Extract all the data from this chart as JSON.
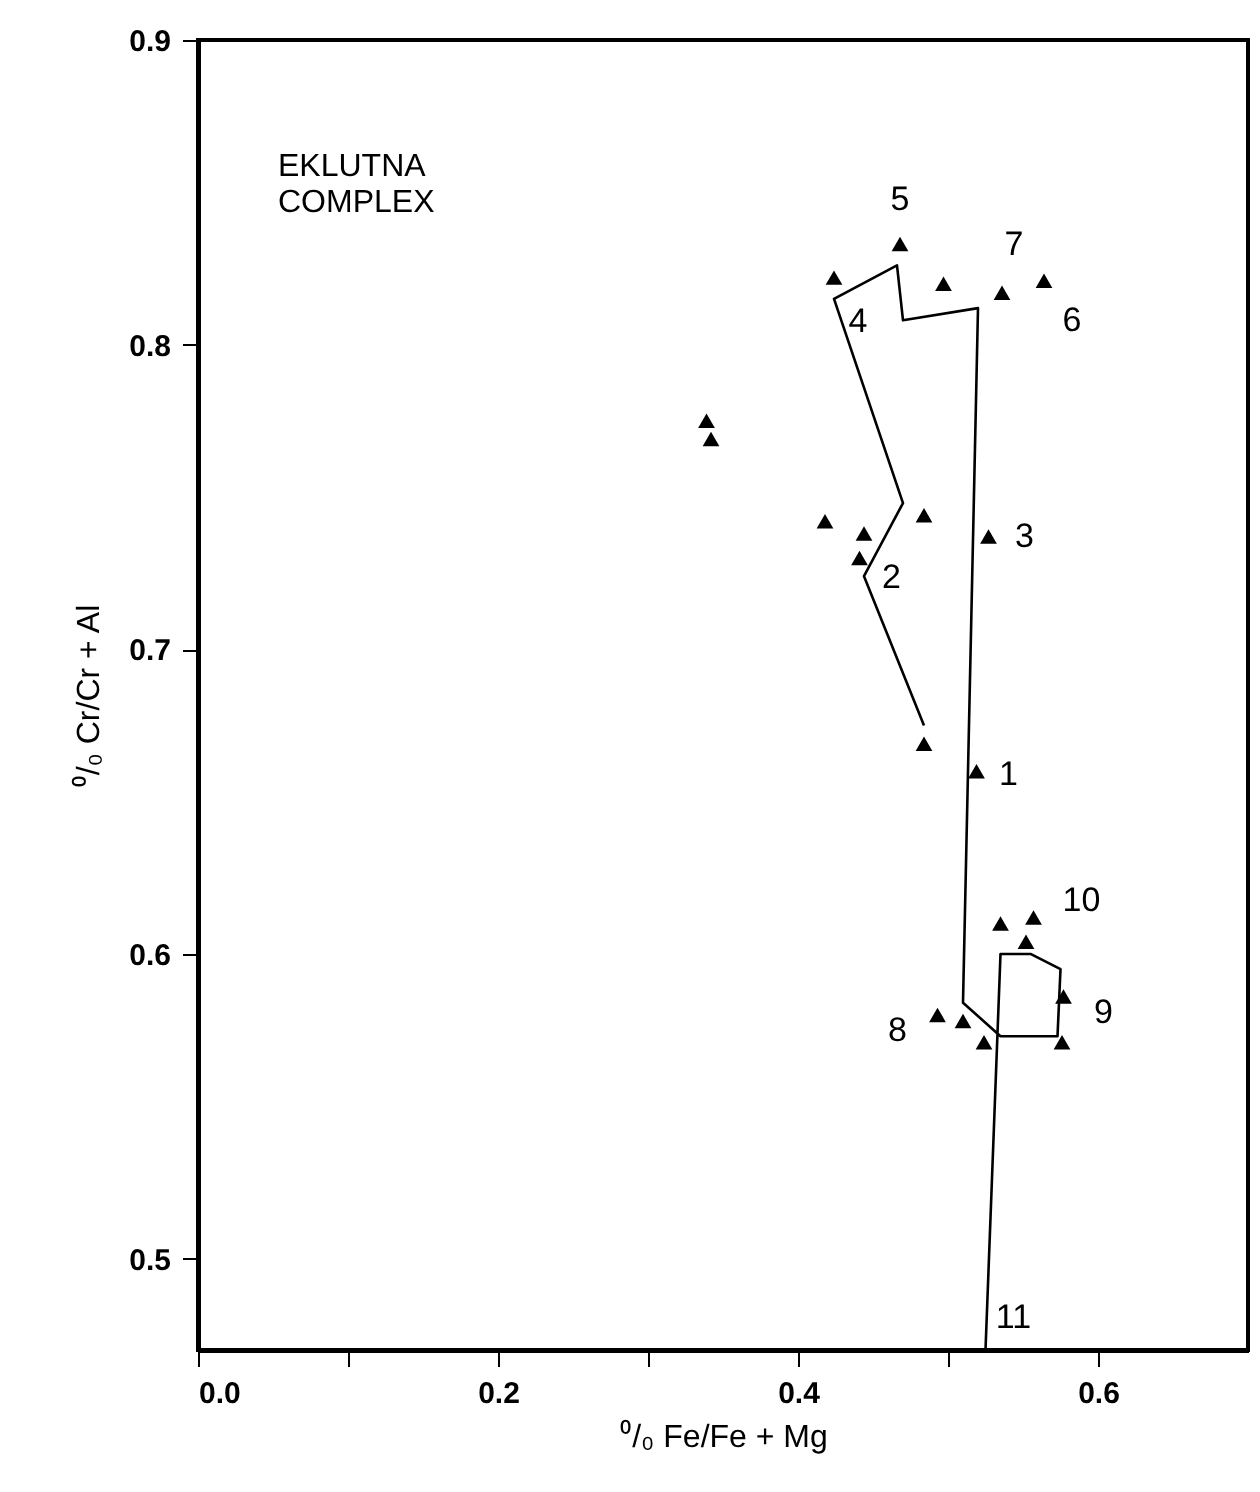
{
  "chart_data": {
    "type": "scatter",
    "xlabel": "⁰/₀ Fe/Fe + Mg",
    "ylabel": "⁰/₀ Cr/Cr + Al",
    "xlim": [
      0,
      0.7
    ],
    "ylim": [
      0.47,
      0.9
    ],
    "xticks": [
      {
        "value": 0,
        "label": "0.0"
      },
      {
        "value": 0.1,
        "label": null
      },
      0.2,
      {
        "value": 0.3,
        "label": null
      },
      0.4,
      {
        "value": 0.5,
        "label": null
      },
      0.6
    ],
    "yticks": [
      0.5,
      0.6,
      0.7,
      0.8,
      0.9
    ],
    "grid": false,
    "series": [
      {
        "type": "line",
        "color": "#000000",
        "marker": "none",
        "line_style": "solid",
        "x": [
          0.484,
          0.444,
          0.47,
          0.424,
          0.466,
          0.47,
          0.52,
          0.51,
          0.535,
          0.573,
          0.575,
          0.555,
          0.535,
          0.525
        ],
        "values": [
          0.675,
          0.724,
          0.748,
          0.815,
          0.826,
          0.808,
          0.812,
          0.584,
          0.573,
          0.573,
          0.595,
          0.6,
          0.6,
          0.47
        ]
      },
      {
        "color": "#000000",
        "marker": "triangle",
        "x": [
          0.484,
          0.519,
          0.444,
          0.441,
          0.418,
          0.484,
          0.527,
          0.424,
          0.468,
          0.339,
          0.342,
          0.564,
          0.497,
          0.536,
          0.493,
          0.51,
          0.524,
          0.577,
          0.576,
          0.535,
          0.557,
          0.552
        ],
        "values": [
          0.669,
          0.66,
          0.738,
          0.73,
          0.742,
          0.744,
          0.737,
          0.822,
          0.833,
          0.775,
          0.769,
          0.821,
          0.82,
          0.817,
          0.58,
          0.578,
          0.571,
          0.586,
          0.571,
          0.61,
          0.612,
          0.604
        ]
      }
    ],
    "annotations": [
      "EKLUTNA\nCOMPLEX",
      {
        "text": "1",
        "x": 0.519,
        "y": 0.66
      },
      {
        "text": "2",
        "x": 0.441,
        "y": 0.73
      },
      {
        "text": "3",
        "x": 0.527,
        "y": 0.737
      },
      {
        "text": "4",
        "x": 0.424,
        "y": 0.822
      },
      {
        "text": "5",
        "x": 0.468,
        "y": 0.833
      },
      {
        "text": "6",
        "x": 0.564,
        "y": 0.821
      },
      {
        "text": "7",
        "x": 0.536,
        "y": 0.817
      },
      {
        "text": "8",
        "x": 0.493,
        "y": 0.58
      },
      {
        "text": "9",
        "x": 0.577,
        "y": 0.586
      },
      {
        "text": "10",
        "x": 0.557,
        "y": 0.612
      },
      {
        "text": "11",
        "x": 0.525,
        "y": 0.47
      }
    ]
  }
}
